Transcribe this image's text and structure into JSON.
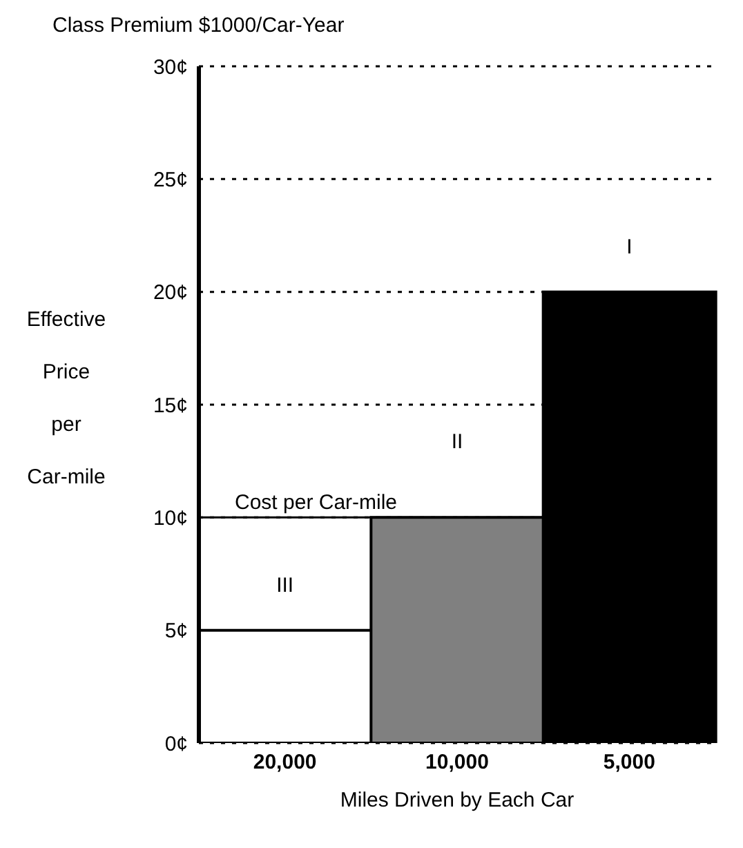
{
  "chart_data": {
    "type": "bar",
    "title": "Class Premium $1000/Car-Year",
    "xlabel": "Miles Driven by Each Car",
    "ylabel": "Effective Price per Car-mile",
    "categories": [
      "20,000",
      "10,000",
      "5,000"
    ],
    "values": [
      5,
      10,
      20
    ],
    "colors": [
      "#ffffff",
      "#808080",
      "#000000"
    ],
    "ylim": [
      0,
      30
    ],
    "yticks": [
      {
        "value": 0,
        "label": "0¢"
      },
      {
        "value": 5,
        "label": "5¢"
      },
      {
        "value": 10,
        "label": "10¢"
      },
      {
        "value": 15,
        "label": "15¢"
      },
      {
        "value": 20,
        "label": "20¢"
      },
      {
        "value": 25,
        "label": "25¢"
      },
      {
        "value": 30,
        "label": "30¢"
      }
    ],
    "grid": "y",
    "ref_lines": [
      {
        "axis": "y",
        "value": 10,
        "label": "Cost per Car-mile",
        "color": "#000000"
      }
    ],
    "annotations": [
      "III",
      "II",
      "I"
    ]
  }
}
